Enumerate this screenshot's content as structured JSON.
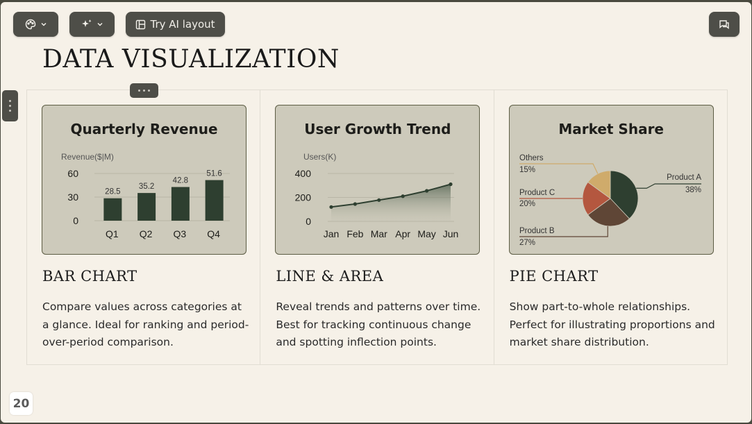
{
  "toolbar": {
    "ai_layout_label": "Try AI layout",
    "theme_icon": "palette-icon",
    "magic_icon": "sparkles-icon",
    "layout_icon": "layout-icon",
    "comment_icon": "comment-icon"
  },
  "slide": {
    "title": "DATA VISUALIZATION",
    "page_number": "20"
  },
  "columns": [
    {
      "heading": "BAR CHART",
      "description": "Compare values across categories at a glance. Ideal for ranking and period-over-period comparison."
    },
    {
      "heading": "LINE & AREA",
      "description": "Reveal trends and patterns over time. Best for tracking continuous change and spotting inflection points."
    },
    {
      "heading": "PIE CHART",
      "description": "Show part-to-whole relationships. Perfect for illustrating proportions and market share distribution."
    }
  ],
  "colors": {
    "card_bg": "#cdcabb",
    "dark_green": "#2e3f30",
    "terracotta": "#b4573f",
    "brown": "#5f4636",
    "tan": "#cfab6b"
  },
  "chart_data": [
    {
      "type": "bar",
      "title": "Quarterly Revenue",
      "ylabel": "Revenue($|M)",
      "categories": [
        "Q1",
        "Q2",
        "Q3",
        "Q4"
      ],
      "values": [
        28.5,
        35.2,
        42.8,
        51.6
      ],
      "value_labels": [
        "28.5",
        "35.2",
        "42.8",
        "51.6"
      ],
      "yticks": [
        "0",
        "30",
        "60"
      ],
      "ylim": [
        0,
        60
      ],
      "grid": true
    },
    {
      "type": "area",
      "title": "User Growth Trend",
      "ylabel": "Users(K)",
      "categories": [
        "Jan",
        "Feb",
        "Mar",
        "Apr",
        "May",
        "Jun"
      ],
      "values": [
        120,
        145,
        178,
        210,
        255,
        310
      ],
      "yticks": [
        "0",
        "200",
        "400"
      ],
      "ylim": [
        0,
        400
      ],
      "grid": true
    },
    {
      "type": "pie",
      "title": "Market Share",
      "slices": [
        {
          "name": "Product A",
          "pct_label": "38%",
          "value": 38
        },
        {
          "name": "Product B",
          "pct_label": "27%",
          "value": 27
        },
        {
          "name": "Product C",
          "pct_label": "20%",
          "value": 20
        },
        {
          "name": "Others",
          "pct_label": "15%",
          "value": 15
        }
      ]
    }
  ]
}
